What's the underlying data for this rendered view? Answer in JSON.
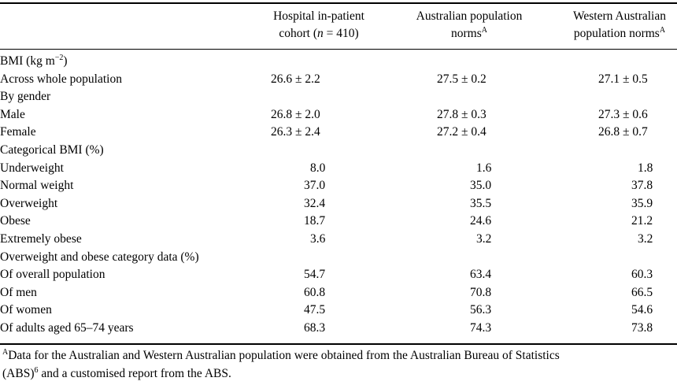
{
  "header": {
    "col1_line1": "Hospital in-patient",
    "col1_line2_prefix": "cohort (",
    "col1_line2_n": "n",
    "col1_line2_suffix": " = 410)",
    "col2_line1": "Australian population",
    "col2_line2": "norms",
    "col2_sup": "A",
    "col3_line1": "Western Australian",
    "col3_line2": "population norms",
    "col3_sup": "A"
  },
  "rows": [
    {
      "label": "BMI (kg m",
      "label_sup": "−2",
      "label_suffix": ")",
      "level": 0,
      "v1": "",
      "v2": "",
      "v3": ""
    },
    {
      "label": "Across whole population",
      "level": 1,
      "v1": "26.6 ± 2.2",
      "v2": "27.5 ± 0.2",
      "v3": "27.1 ± 0.5"
    },
    {
      "label": "By gender",
      "level": 1,
      "v1": "",
      "v2": "",
      "v3": ""
    },
    {
      "label": "Male",
      "level": 2,
      "v1": "26.8 ± 2.0",
      "v2": "27.8 ± 0.3",
      "v3": "27.3 ± 0.6"
    },
    {
      "label": "Female",
      "level": 2,
      "v1": "26.3 ± 2.4",
      "v2": "27.2 ± 0.4",
      "v3": "26.8 ± 0.7"
    },
    {
      "label": "Categorical BMI (%)",
      "level": 0,
      "v1": "",
      "v2": "",
      "v3": ""
    },
    {
      "label": "Underweight",
      "level": 1,
      "v1": "8.0",
      "v2": "1.6",
      "v3": "1.8"
    },
    {
      "label": "Normal weight",
      "level": 1,
      "v1": "37.0",
      "v2": "35.0",
      "v3": "37.8"
    },
    {
      "label": "Overweight",
      "level": 1,
      "v1": "32.4",
      "v2": "35.5",
      "v3": "35.9"
    },
    {
      "label": "Obese",
      "level": 1,
      "v1": "18.7",
      "v2": "24.6",
      "v3": "21.2"
    },
    {
      "label": "Extremely obese",
      "level": 1,
      "v1": "3.6",
      "v2": "3.2",
      "v3": "3.2"
    },
    {
      "label": "Overweight and obese category data (%)",
      "level": 0,
      "v1": "",
      "v2": "",
      "v3": ""
    },
    {
      "label": "Of overall population",
      "level": 1,
      "v1": "54.7",
      "v2": "63.4",
      "v3": "60.3"
    },
    {
      "label": "Of men",
      "level": 1,
      "v1": "60.8",
      "v2": "70.8",
      "v3": "66.5"
    },
    {
      "label": "Of women",
      "level": 1,
      "v1": "47.5",
      "v2": "56.3",
      "v3": "54.6"
    },
    {
      "label": "Of adults aged 65–74 years",
      "level": 1,
      "v1": "68.3",
      "v2": "74.3",
      "v3": "73.8"
    }
  ],
  "footnote": {
    "sup": "A",
    "text1": "Data for the Australian and Western Australian population were obtained from the Australian Bureau of Statistics",
    "text2": "(ABS)",
    "ref_sup": "6",
    "text3": " and a customised report from the ABS."
  }
}
